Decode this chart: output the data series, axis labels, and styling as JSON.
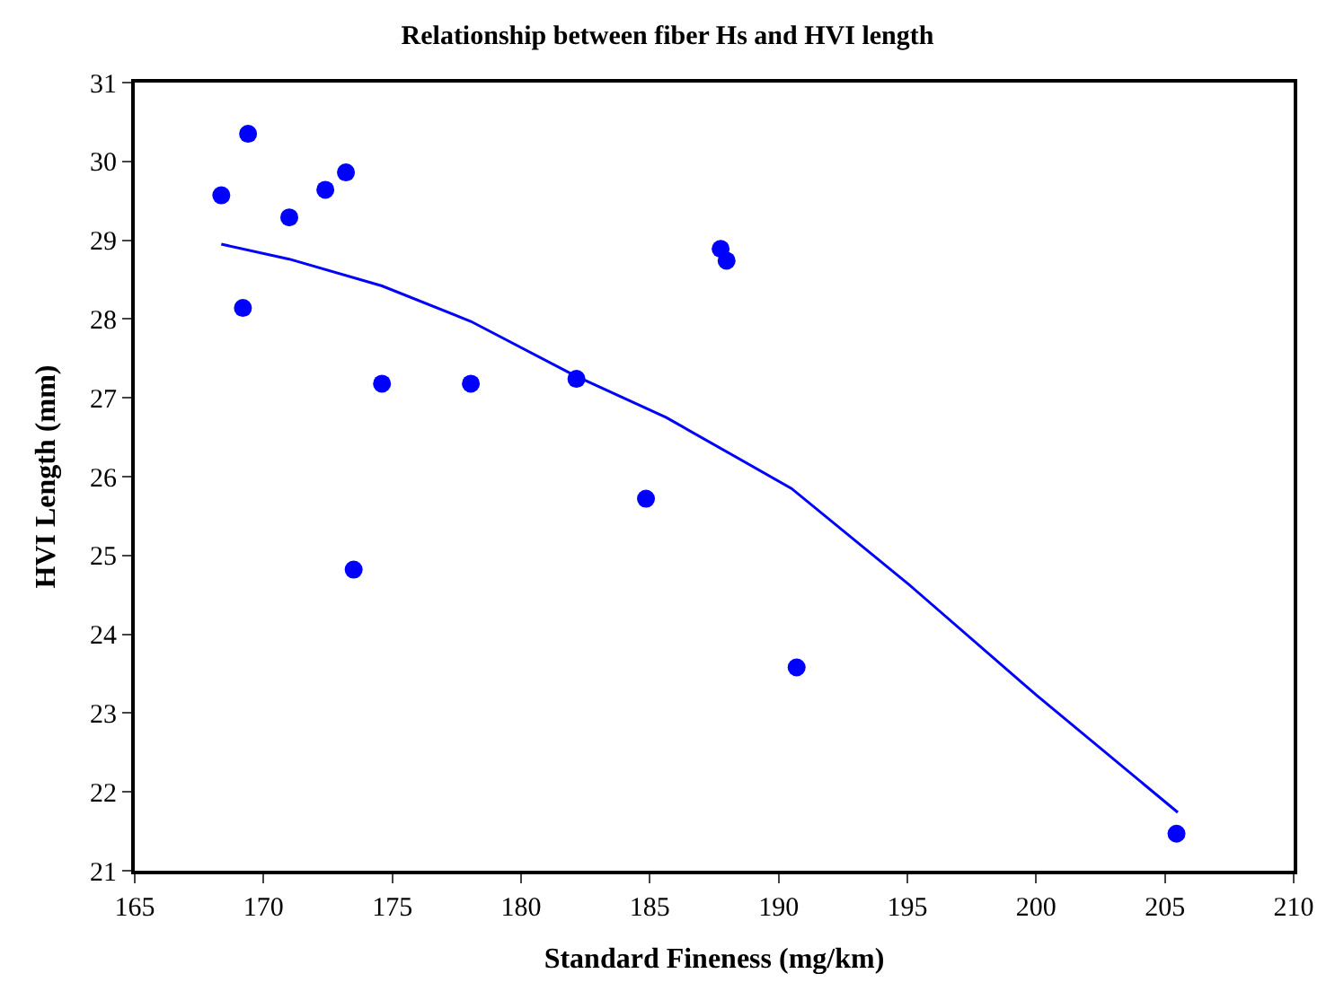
{
  "chart_data": {
    "type": "scatter",
    "title": "Relationship between fiber Hs and HVI length",
    "xlabel": "Standard Fineness (mg/km)",
    "ylabel": "HVI Length (mm)",
    "xlim": [
      165,
      210
    ],
    "xticks": [
      165,
      170,
      175,
      180,
      185,
      190,
      195,
      200,
      205,
      210
    ],
    "ylim": [
      21,
      31
    ],
    "yticks": [
      21,
      22,
      23,
      24,
      25,
      26,
      27,
      28,
      29,
      30,
      31
    ],
    "grid": false,
    "marker": "circle",
    "series": [
      {
        "color": "#0000ff",
        "x": [
          168.36,
          169.4,
          169.2,
          171.0,
          172.4,
          173.2,
          174.6,
          178.05,
          182.15,
          184.85,
          173.5,
          187.75,
          187.98,
          190.7,
          205.45
        ],
        "values": [
          29.57,
          30.35,
          28.14,
          29.29,
          29.64,
          29.86,
          27.18,
          27.18,
          27.24,
          25.72,
          24.82,
          28.89,
          28.74,
          23.58,
          21.47
        ]
      },
      {
        "type": "line",
        "color": "#0000ff",
        "marker": "none",
        "line_style": "solid",
        "x": [
          168.36,
          171.0,
          174.6,
          178.05,
          182.1,
          185.64,
          190.5,
          195.1,
          200.0,
          205.5
        ],
        "values": [
          28.95,
          28.76,
          28.42,
          27.97,
          27.28,
          26.75,
          25.85,
          24.62,
          23.23,
          21.74
        ]
      }
    ]
  }
}
